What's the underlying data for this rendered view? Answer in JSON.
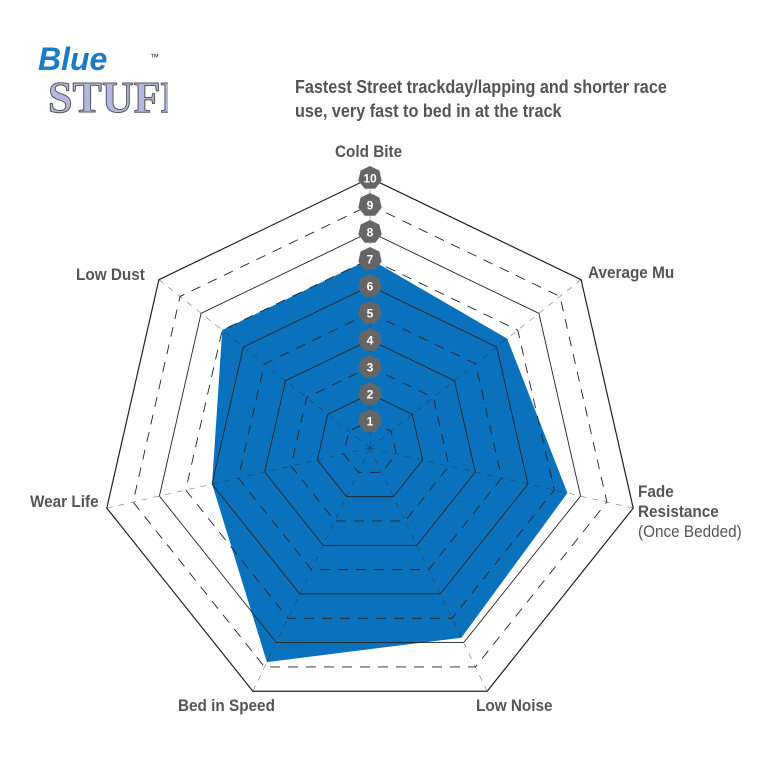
{
  "logo": {
    "line1": "Blue",
    "line2": "STUFF",
    "tm": "™"
  },
  "title": "Fastest Street trackday/lapping and shorter race use, very fast to bed in at the track",
  "chart_data": {
    "type": "radar",
    "title": "Fastest Street trackday/lapping and shorter race use, very fast to bed in at the track",
    "axes": [
      {
        "label": "Cold Bite",
        "sublabel": ""
      },
      {
        "label": "Average Mu",
        "sublabel": ""
      },
      {
        "label": "Fade Resistance",
        "sublabel": "(Once Bedded)"
      },
      {
        "label": "Low Noise",
        "sublabel": ""
      },
      {
        "label": "Bed in Speed",
        "sublabel": ""
      },
      {
        "label": "Wear Life",
        "sublabel": ""
      },
      {
        "label": "Low Dust",
        "sublabel": ""
      }
    ],
    "values": [
      7,
      6.5,
      7.5,
      7.8,
      8.8,
      6,
      7
    ],
    "range": [
      0,
      10
    ],
    "ticks": [
      "1",
      "2",
      "3",
      "4",
      "5",
      "6",
      "7",
      "8",
      "9",
      "10"
    ],
    "grid": true,
    "colors": {
      "fill": "#0a72bd",
      "badge": "#666666",
      "grid": "#222222"
    }
  }
}
